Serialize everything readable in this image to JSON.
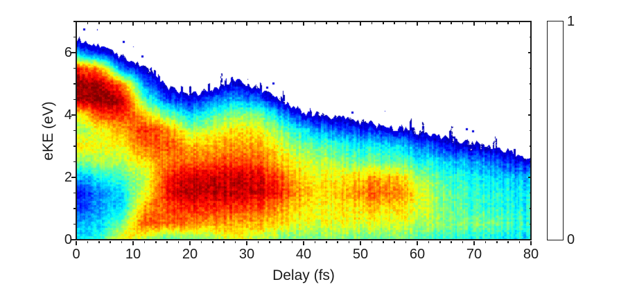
{
  "figure": {
    "background": "#ffffff",
    "axis_color": "#1a1a1a"
  },
  "chart_data": {
    "type": "heatmap",
    "title": "",
    "xlabel": "Delay (fs)",
    "ylabel": "eKE (eV)",
    "xlim": [
      0,
      80
    ],
    "ylim": [
      0,
      7
    ],
    "x_major_ticks": [
      0,
      10,
      20,
      30,
      40,
      50,
      60,
      70,
      80
    ],
    "x_tick_labels": [
      "0",
      "10",
      "20",
      "30",
      "40",
      "50",
      "60",
      "70",
      "80"
    ],
    "x_minor_step": 2,
    "y_major_ticks": [
      0,
      2,
      4,
      6
    ],
    "y_tick_labels": [
      "0",
      "2",
      "4",
      "6"
    ],
    "y_minor_step": 0.5,
    "colormap": "jet",
    "colorbar": {
      "min": 0,
      "max": 1,
      "min_label": "0",
      "max_label": "1",
      "position": "right"
    },
    "grid": {
      "comment": "normalized intensity 0-1 sampled on delays x ekes_desc; white above cutoff_eke",
      "delays": [
        0,
        4,
        8,
        12,
        16,
        20,
        24,
        28,
        32,
        36,
        40,
        44,
        48,
        52,
        56,
        60,
        64,
        68,
        72,
        76,
        80
      ],
      "ekes_desc": [
        7.0,
        6.5,
        6.0,
        5.5,
        5.0,
        4.5,
        4.0,
        3.5,
        3.0,
        2.5,
        2.0,
        1.5,
        1.0,
        0.5,
        0.0
      ],
      "cutoff_eke": [
        6.5,
        6.2,
        5.9,
        5.55,
        4.9,
        4.65,
        4.9,
        5.15,
        4.9,
        4.55,
        4.1,
        4.0,
        3.9,
        3.75,
        3.6,
        3.5,
        3.35,
        3.2,
        3.05,
        2.85,
        2.65
      ],
      "values": [
        [
          0,
          0,
          0,
          0,
          0,
          0,
          0,
          0,
          0,
          0,
          0,
          0,
          0,
          0,
          0,
          0,
          0,
          0,
          0,
          0,
          0
        ],
        [
          0.05,
          0,
          0,
          0,
          0,
          0,
          0,
          0,
          0,
          0,
          0,
          0,
          0,
          0,
          0,
          0,
          0,
          0,
          0,
          0,
          0
        ],
        [
          0.3,
          0.15,
          0.02,
          0,
          0,
          0,
          0,
          0,
          0,
          0,
          0,
          0,
          0,
          0,
          0,
          0,
          0,
          0,
          0,
          0,
          0
        ],
        [
          0.85,
          0.72,
          0.25,
          0.05,
          0,
          0,
          0,
          0,
          0,
          0,
          0,
          0,
          0,
          0,
          0,
          0,
          0,
          0,
          0,
          0,
          0
        ],
        [
          1.0,
          0.97,
          0.75,
          0.25,
          0.05,
          0.02,
          0.03,
          0.1,
          0.03,
          0,
          0,
          0,
          0,
          0,
          0,
          0,
          0,
          0,
          0,
          0,
          0
        ],
        [
          0.95,
          1.0,
          0.95,
          0.45,
          0.2,
          0.1,
          0.25,
          0.3,
          0.22,
          0.05,
          0.02,
          0,
          0,
          0,
          0,
          0,
          0,
          0,
          0,
          0,
          0
        ],
        [
          0.6,
          0.8,
          0.85,
          0.68,
          0.5,
          0.35,
          0.45,
          0.5,
          0.5,
          0.32,
          0.12,
          0.04,
          0.02,
          0,
          0,
          0,
          0,
          0,
          0,
          0,
          0
        ],
        [
          0.52,
          0.6,
          0.7,
          0.85,
          0.75,
          0.55,
          0.6,
          0.65,
          0.62,
          0.5,
          0.36,
          0.27,
          0.2,
          0.16,
          0.12,
          0.04,
          0.02,
          0,
          0,
          0,
          0
        ],
        [
          0.66,
          0.6,
          0.62,
          0.78,
          0.8,
          0.7,
          0.7,
          0.72,
          0.7,
          0.6,
          0.5,
          0.45,
          0.4,
          0.38,
          0.35,
          0.26,
          0.16,
          0.08,
          0.04,
          0.02,
          0.02
        ],
        [
          0.5,
          0.55,
          0.55,
          0.65,
          0.75,
          0.78,
          0.8,
          0.8,
          0.78,
          0.68,
          0.6,
          0.55,
          0.5,
          0.5,
          0.45,
          0.4,
          0.35,
          0.3,
          0.25,
          0.16,
          0.1
        ],
        [
          0.3,
          0.38,
          0.45,
          0.55,
          0.85,
          0.92,
          0.93,
          0.93,
          0.9,
          0.8,
          0.65,
          0.62,
          0.65,
          0.7,
          0.68,
          0.55,
          0.45,
          0.4,
          0.35,
          0.32,
          0.3
        ],
        [
          0.13,
          0.25,
          0.35,
          0.6,
          0.88,
          0.95,
          0.95,
          0.93,
          0.92,
          0.85,
          0.7,
          0.65,
          0.72,
          0.78,
          0.75,
          0.62,
          0.5,
          0.45,
          0.4,
          0.38,
          0.35
        ],
        [
          0.16,
          0.28,
          0.35,
          0.72,
          0.8,
          0.85,
          0.85,
          0.82,
          0.8,
          0.72,
          0.65,
          0.62,
          0.65,
          0.68,
          0.65,
          0.6,
          0.52,
          0.45,
          0.42,
          0.4,
          0.38
        ],
        [
          0.3,
          0.33,
          0.5,
          0.8,
          0.78,
          0.75,
          0.72,
          0.7,
          0.7,
          0.65,
          0.6,
          0.6,
          0.62,
          0.6,
          0.58,
          0.55,
          0.52,
          0.5,
          0.5,
          0.45,
          0.4
        ],
        [
          0.35,
          0.4,
          0.65,
          0.55,
          0.45,
          0.5,
          0.55,
          0.6,
          0.55,
          0.5,
          0.5,
          0.5,
          0.5,
          0.48,
          0.48,
          0.45,
          0.42,
          0.4,
          0.38,
          0.36,
          0.35
        ]
      ]
    }
  }
}
